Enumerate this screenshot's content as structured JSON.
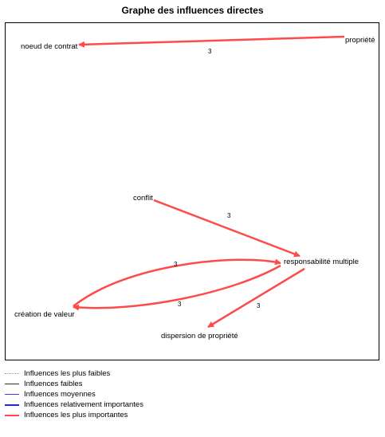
{
  "title": "Graphe des influences directes",
  "nodes": {
    "noeud_de_contrat": "noeud de contrat",
    "propriete": "propriété",
    "conflit": "conflit",
    "responsabilite_multiple": "responsabilité multiple",
    "creation_de_valeur": "création de valeur",
    "dispersion_de_propriete": "dispersion de propriété"
  },
  "edges": [
    {
      "from": "propriété",
      "to": "noeud de contrat",
      "weight": "3"
    },
    {
      "from": "conflit",
      "to": "responsabilité multiple",
      "weight": "3"
    },
    {
      "from": "création de valeur",
      "to": "responsabilité multiple",
      "weight": "3"
    },
    {
      "from": "responsabilité multiple",
      "to": "création de valeur",
      "weight": "3"
    },
    {
      "from": "responsabilité multiple",
      "to": "dispersion de propriété",
      "weight": "3"
    }
  ],
  "edge_color": "#ff4a4a",
  "legend": [
    {
      "label": "Influences les plus faibles",
      "style": "dotted",
      "color": "#9a9a9a"
    },
    {
      "label": "Influences faibles",
      "style": "solid-thin",
      "color": "#333333"
    },
    {
      "label": "Influences moyennes",
      "style": "solid-thin",
      "color": "#3a3aff"
    },
    {
      "label": "Influences relativement importantes",
      "style": "solid-thick",
      "color": "#2222ff"
    },
    {
      "label": "Influences les plus importantes",
      "style": "solid-thick",
      "color": "#ff4a4a"
    }
  ]
}
